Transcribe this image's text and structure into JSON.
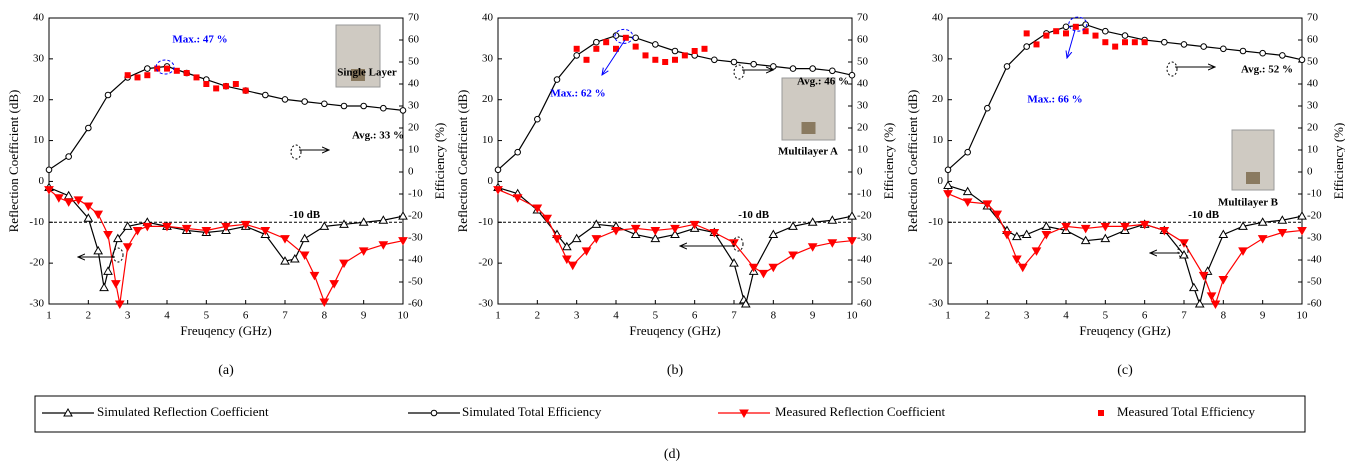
{
  "chart_data": [
    {
      "type": "line",
      "caption": "(a)",
      "xlabel": "Freuqency (GHz)",
      "ylabel": "Reflection Coefficient (dB)",
      "y2label": "Efficiency (%)",
      "xlim": [
        1,
        10
      ],
      "xticks": [
        1,
        2,
        3,
        4,
        5,
        6,
        7,
        8,
        9,
        10
      ],
      "ylim": [
        -30,
        40
      ],
      "yticks": [
        -30,
        -20,
        -10,
        0,
        10,
        20,
        30,
        40
      ],
      "y2lim": [
        -60,
        70
      ],
      "y2ticks": [
        -60,
        -50,
        -40,
        -30,
        -20,
        -10,
        0,
        10,
        20,
        30,
        40,
        50,
        60,
        70
      ],
      "hline": {
        "value": -10,
        "label": "-10 dB"
      },
      "annotations": {
        "max": "Max.: 47 %",
        "avg": "Avg.: 33 %",
        "photo": "Single Layer"
      },
      "series": [
        {
          "name": "Simulated Reflection Coefficient",
          "color": "#000000",
          "marker": "triangle-up",
          "line": true,
          "axis": "y",
          "x": [
            1,
            1.5,
            2,
            2.25,
            2.4,
            2.5,
            2.75,
            3,
            3.5,
            4,
            4.5,
            5,
            5.5,
            6,
            6.5,
            7,
            7.25,
            7.5,
            8,
            8.5,
            9,
            9.5,
            10
          ],
          "values": [
            -1.5,
            -3.5,
            -9,
            -17,
            -26,
            -22,
            -14,
            -11,
            -10,
            -11,
            -12,
            -12.5,
            -12,
            -11,
            -13,
            -19.5,
            -19,
            -14,
            -11,
            -10.5,
            -10,
            -9.5,
            -8.5
          ]
        },
        {
          "name": "Simulated Total Efficiency",
          "color": "#000000",
          "marker": "circle",
          "line": true,
          "axis": "y2",
          "x": [
            1,
            1.5,
            2,
            2.5,
            3,
            3.5,
            4,
            4.5,
            5,
            5.5,
            6,
            6.5,
            7,
            7.5,
            8,
            8.5,
            9,
            9.5,
            10
          ],
          "values": [
            1,
            7,
            20,
            35,
            43,
            47,
            48,
            45,
            42,
            39,
            37,
            35,
            33,
            32,
            31,
            30,
            30,
            29,
            28
          ]
        },
        {
          "name": "Measured Reflection Coefficient",
          "color": "#ff0000",
          "marker": "triangle-down",
          "line": true,
          "axis": "y",
          "x": [
            1,
            1.25,
            1.5,
            1.75,
            2,
            2.25,
            2.5,
            2.7,
            2.8,
            3,
            3.25,
            3.5,
            4,
            4.5,
            5,
            5.5,
            6,
            6.5,
            7,
            7.5,
            7.75,
            8,
            8.25,
            8.5,
            9,
            9.5,
            10
          ],
          "values": [
            -2,
            -4,
            -5,
            -4.5,
            -6,
            -8,
            -13,
            -25,
            -30,
            -16,
            -12,
            -11,
            -11,
            -11.5,
            -12,
            -11,
            -10.5,
            -12,
            -14,
            -18,
            -23,
            -29.5,
            -25,
            -20,
            -17,
            -15.5,
            -14.5
          ]
        },
        {
          "name": "Measured Total Efficiency",
          "color": "#ff0000",
          "marker": "square",
          "line": false,
          "axis": "y2",
          "x": [
            3,
            3.25,
            3.5,
            3.75,
            4,
            4.25,
            4.5,
            4.75,
            5,
            5.25,
            5.5,
            5.75,
            6
          ],
          "values": [
            44,
            43,
            44,
            47,
            47,
            46,
            45,
            43,
            40,
            38,
            39,
            40,
            37
          ]
        }
      ]
    },
    {
      "type": "line",
      "caption": "(b)",
      "xlabel": "Freuqency (GHz)",
      "ylabel": "Reflection Coefficient (dB)",
      "y2label": "Efficiency (%)",
      "xlim": [
        1,
        10
      ],
      "xticks": [
        1,
        2,
        3,
        4,
        5,
        6,
        7,
        8,
        9,
        10
      ],
      "ylim": [
        -30,
        40
      ],
      "yticks": [
        -30,
        -20,
        -10,
        0,
        10,
        20,
        30,
        40
      ],
      "y2lim": [
        -60,
        70
      ],
      "y2ticks": [
        -60,
        -50,
        -40,
        -30,
        -20,
        -10,
        0,
        10,
        20,
        30,
        40,
        50,
        60,
        70
      ],
      "hline": {
        "value": -10,
        "label": "-10 dB"
      },
      "annotations": {
        "max": "Max.: 62 %",
        "avg": "Avg.: 46 %",
        "photo": "Multilayer A"
      },
      "series": [
        {
          "color": "#000000",
          "marker": "triangle-up",
          "line": true,
          "axis": "y",
          "x": [
            1,
            1.5,
            2,
            2.5,
            2.75,
            3,
            3.5,
            4,
            4.5,
            5,
            5.5,
            6,
            6.5,
            7,
            7.25,
            7.3,
            7.5,
            8,
            8.5,
            9,
            9.5,
            10
          ],
          "values": [
            -1.5,
            -3,
            -7,
            -13,
            -16,
            -14,
            -10.5,
            -11,
            -13,
            -14,
            -13,
            -11.5,
            -12.5,
            -20,
            -29,
            -30,
            -22,
            -13,
            -11,
            -10,
            -9.5,
            -8.5
          ]
        },
        {
          "color": "#000000",
          "marker": "circle",
          "line": true,
          "axis": "y2",
          "x": [
            1,
            1.5,
            2,
            2.5,
            3,
            3.5,
            4,
            4.5,
            5,
            5.5,
            6,
            6.5,
            7,
            7.5,
            8,
            8.5,
            9,
            9.5,
            10
          ],
          "values": [
            1,
            9,
            24,
            42,
            53,
            59,
            62,
            61,
            58,
            55,
            53,
            51,
            50,
            49,
            48,
            47,
            47,
            46,
            44
          ]
        },
        {
          "color": "#ff0000",
          "marker": "triangle-down",
          "line": true,
          "axis": "y",
          "x": [
            1,
            1.5,
            2,
            2.25,
            2.5,
            2.75,
            2.9,
            3.25,
            3.5,
            4,
            4.5,
            5,
            5.5,
            6,
            6.5,
            7,
            7.5,
            7.75,
            8,
            8.5,
            9,
            9.5,
            10
          ],
          "values": [
            -2,
            -4,
            -6.5,
            -9,
            -14,
            -19,
            -20.5,
            -17,
            -14,
            -12,
            -11.5,
            -12,
            -11.5,
            -10.5,
            -12.5,
            -15,
            -21,
            -22.5,
            -21,
            -18,
            -16,
            -15,
            -14.5
          ]
        },
        {
          "color": "#ff0000",
          "marker": "square",
          "line": false,
          "axis": "y2",
          "x": [
            3,
            3.25,
            3.5,
            3.75,
            4,
            4.25,
            4.5,
            4.75,
            5,
            5.25,
            5.5,
            5.75,
            6,
            6.25
          ],
          "values": [
            56,
            51,
            56,
            59,
            56,
            61,
            57,
            53,
            51,
            50,
            51,
            53,
            55,
            56
          ]
        }
      ]
    },
    {
      "type": "line",
      "caption": "(c)",
      "xlabel": "Freuqency (GHz)",
      "ylabel": "Reflection Coefficient (dB)",
      "y2label": "Efficiency (%)",
      "xlim": [
        1,
        10
      ],
      "xticks": [
        1,
        2,
        3,
        4,
        5,
        6,
        7,
        8,
        9,
        10
      ],
      "ylim": [
        -30,
        40
      ],
      "yticks": [
        -30,
        -20,
        -10,
        0,
        10,
        20,
        30,
        40
      ],
      "y2lim": [
        -60,
        70
      ],
      "y2ticks": [
        -60,
        -50,
        -40,
        -30,
        -20,
        -10,
        0,
        10,
        20,
        30,
        40,
        50,
        60,
        70
      ],
      "hline": {
        "value": -10,
        "label": "-10 dB"
      },
      "annotations": {
        "max": "Max.: 66 %",
        "avg": "Avg.: 52 %",
        "photo": "Multilayer B"
      },
      "series": [
        {
          "color": "#000000",
          "marker": "triangle-up",
          "line": true,
          "axis": "y",
          "x": [
            1,
            1.5,
            2,
            2.5,
            2.75,
            3,
            3.5,
            4,
            4.5,
            5,
            5.5,
            6,
            6.5,
            7,
            7.25,
            7.4,
            7.6,
            8,
            8.5,
            9,
            9.5,
            10
          ],
          "values": [
            -1,
            -2.5,
            -6,
            -12,
            -13.5,
            -13,
            -11,
            -12,
            -14.5,
            -14,
            -12,
            -10.5,
            -12,
            -18,
            -26,
            -30,
            -22,
            -13,
            -11,
            -10,
            -9.5,
            -8.5
          ]
        },
        {
          "color": "#000000",
          "marker": "circle",
          "line": true,
          "axis": "y2",
          "x": [
            1,
            1.5,
            2,
            2.5,
            3,
            3.5,
            4,
            4.5,
            5,
            5.5,
            6,
            6.5,
            7,
            7.5,
            8,
            8.5,
            9,
            9.5,
            10
          ],
          "values": [
            1,
            9,
            29,
            48,
            57,
            63,
            66,
            67,
            64,
            62,
            60,
            59,
            58,
            57,
            56,
            55,
            54,
            53,
            51
          ]
        },
        {
          "color": "#ff0000",
          "marker": "triangle-down",
          "line": true,
          "axis": "y",
          "x": [
            1,
            1.5,
            2,
            2.25,
            2.5,
            2.75,
            2.9,
            3.25,
            3.5,
            4,
            4.5,
            5,
            5.5,
            6,
            6.5,
            7,
            7.5,
            7.7,
            7.8,
            8,
            8.5,
            9,
            9.5,
            10
          ],
          "values": [
            -3,
            -5,
            -5.5,
            -8,
            -13,
            -19,
            -21,
            -17,
            -13,
            -11,
            -11.5,
            -11,
            -11,
            -10.5,
            -12,
            -15,
            -23,
            -28,
            -30,
            -24,
            -17,
            -14,
            -12.5,
            -12
          ]
        },
        {
          "color": "#ff0000",
          "marker": "square",
          "line": false,
          "axis": "y2",
          "x": [
            3,
            3.25,
            3.5,
            3.75,
            4,
            4.25,
            4.5,
            4.75,
            5,
            5.25,
            5.5,
            5.75,
            6
          ],
          "values": [
            63,
            58,
            62,
            64,
            63,
            66,
            64,
            62,
            59,
            57,
            59,
            59,
            59
          ]
        }
      ]
    }
  ],
  "caption": "(d)"
}
